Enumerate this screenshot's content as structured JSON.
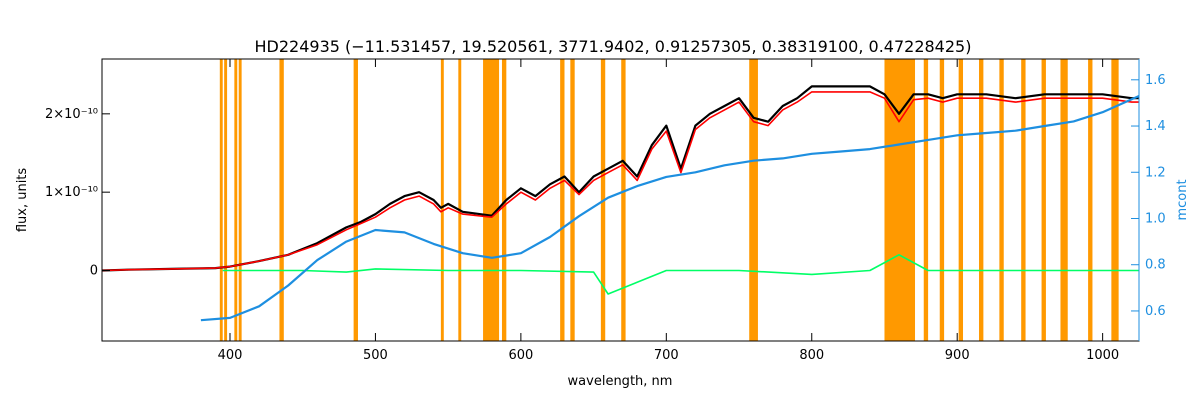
{
  "chart_data": {
    "type": "line",
    "title": "HD224935   (−11.531457, 19.520561, 3771.9402, 0.91257305, 0.38319100, 0.47228425)",
    "xlabel": "wavelength, nm",
    "ylabel": "flux, units",
    "y2label": "mcont",
    "xlim": [
      312,
      1025
    ],
    "ylim": [
      -9e-11,
      2.7e-10
    ],
    "y2lim": [
      0.47,
      1.69
    ],
    "x_ticks": [
      400,
      500,
      600,
      700,
      800,
      900,
      1000
    ],
    "x_tick_labels": [
      "400",
      "500",
      "600",
      "700",
      "800",
      "900",
      "1000"
    ],
    "y_ticks": [
      0,
      1e-10,
      2e-10
    ],
    "y_tick_labels": [
      "0",
      "1×10⁻¹⁰",
      "2×10⁻¹⁰"
    ],
    "y2_ticks": [
      0.6,
      0.8,
      1.0,
      1.2,
      1.4,
      1.6
    ],
    "y2_tick_labels": [
      "0.6",
      "0.8",
      "1.0",
      "1.2",
      "1.4",
      "1.6"
    ],
    "grid": false,
    "colors": {
      "observed": "#000000",
      "model": "#ff0000",
      "masked_model": "#ffff00",
      "residual": "#00ff66",
      "continuum": "#1e8fe0",
      "mask_band": "#ff9900"
    },
    "mask_bands": [
      [
        393,
        395
      ],
      [
        396,
        398
      ],
      [
        403,
        405
      ],
      [
        406,
        408
      ],
      [
        434,
        437
      ],
      [
        485,
        488
      ],
      [
        545,
        547
      ],
      [
        557,
        559
      ],
      [
        574,
        585
      ],
      [
        587,
        590
      ],
      [
        627,
        630
      ],
      [
        634,
        637
      ],
      [
        655,
        658
      ],
      [
        669,
        672
      ],
      [
        757,
        763
      ],
      [
        850,
        871
      ],
      [
        877,
        880
      ],
      [
        888,
        891
      ],
      [
        901,
        904
      ],
      [
        915,
        918
      ],
      [
        929,
        932
      ],
      [
        944,
        947
      ],
      [
        958,
        961
      ],
      [
        971,
        976
      ],
      [
        990,
        993
      ],
      [
        1006,
        1011
      ]
    ],
    "series": [
      {
        "key": "observed",
        "x": [
          312,
          330,
          360,
          390,
          400,
          420,
          440,
          460,
          480,
          490,
          500,
          510,
          520,
          530,
          540,
          545,
          550,
          560,
          580,
          590,
          600,
          610,
          620,
          630,
          640,
          650,
          660,
          670,
          680,
          690,
          700,
          710,
          720,
          730,
          740,
          750,
          760,
          770,
          780,
          790,
          800,
          820,
          840,
          850,
          860,
          870,
          880,
          890,
          900,
          920,
          940,
          960,
          980,
          1000,
          1020,
          1025
        ],
        "y": [
          0,
          1e-12,
          2e-12,
          3e-12,
          5e-12,
          1.2e-11,
          2e-11,
          3.5e-11,
          5.5e-11,
          6.2e-11,
          7.2e-11,
          8.5e-11,
          9.5e-11,
          1e-10,
          9e-11,
          8e-11,
          8.5e-11,
          7.5e-11,
          7e-11,
          9e-11,
          1.05e-10,
          9.5e-11,
          1.1e-10,
          1.2e-10,
          1e-10,
          1.2e-10,
          1.3e-10,
          1.4e-10,
          1.2e-10,
          1.6e-10,
          1.85e-10,
          1.3e-10,
          1.85e-10,
          2e-10,
          2.1e-10,
          2.2e-10,
          1.95e-10,
          1.9e-10,
          2.1e-10,
          2.2e-10,
          2.35e-10,
          2.35e-10,
          2.35e-10,
          2.25e-10,
          2e-10,
          2.25e-10,
          2.25e-10,
          2.2e-10,
          2.25e-10,
          2.25e-10,
          2.2e-10,
          2.25e-10,
          2.25e-10,
          2.25e-10,
          2.2e-10,
          2.2e-10
        ]
      },
      {
        "key": "model",
        "x": [
          312,
          330,
          360,
          390,
          400,
          420,
          440,
          460,
          480,
          490,
          500,
          510,
          520,
          530,
          540,
          545,
          550,
          560,
          580,
          590,
          600,
          610,
          620,
          630,
          640,
          650,
          660,
          670,
          680,
          690,
          700,
          710,
          720,
          730,
          740,
          750,
          760,
          770,
          780,
          790,
          800,
          820,
          840,
          850,
          860,
          870,
          880,
          890,
          900,
          920,
          940,
          960,
          980,
          1000,
          1020,
          1025
        ],
        "y": [
          0,
          1e-12,
          2e-12,
          3e-12,
          5e-12,
          1.2e-11,
          2e-11,
          3.3e-11,
          5.2e-11,
          6e-11,
          6.8e-11,
          8e-11,
          9e-11,
          9.5e-11,
          8.5e-11,
          7.5e-11,
          8e-11,
          7.2e-11,
          6.8e-11,
          8.5e-11,
          1e-10,
          9e-11,
          1.05e-10,
          1.15e-10,
          9.7e-11,
          1.15e-10,
          1.25e-10,
          1.35e-10,
          1.15e-10,
          1.55e-10,
          1.78e-10,
          1.25e-10,
          1.8e-10,
          1.95e-10,
          2.05e-10,
          2.15e-10,
          1.9e-10,
          1.85e-10,
          2.05e-10,
          2.15e-10,
          2.28e-10,
          2.28e-10,
          2.28e-10,
          2.2e-10,
          1.9e-10,
          2.18e-10,
          2.2e-10,
          2.15e-10,
          2.2e-10,
          2.2e-10,
          2.15e-10,
          2.2e-10,
          2.2e-10,
          2.2e-10,
          2.15e-10,
          2.15e-10
        ]
      },
      {
        "key": "residual",
        "x": [
          395,
          420,
          450,
          480,
          500,
          550,
          600,
          650,
          660,
          700,
          750,
          800,
          840,
          860,
          880,
          900,
          950,
          1000,
          1025
        ],
        "y": [
          0,
          0,
          0,
          -2e-12,
          2e-12,
          0,
          0,
          -2e-12,
          -3e-11,
          0,
          0,
          -5e-12,
          0,
          2e-11,
          0,
          0,
          0,
          0,
          0
        ]
      },
      {
        "key": "continuum",
        "axis": "right",
        "x": [
          380,
          400,
          420,
          440,
          460,
          480,
          500,
          520,
          540,
          560,
          580,
          600,
          620,
          640,
          660,
          680,
          700,
          720,
          740,
          760,
          780,
          800,
          820,
          840,
          860,
          880,
          900,
          920,
          940,
          960,
          980,
          1000,
          1025
        ],
        "y": [
          0.56,
          0.57,
          0.62,
          0.71,
          0.82,
          0.9,
          0.95,
          0.94,
          0.89,
          0.85,
          0.83,
          0.85,
          0.92,
          1.01,
          1.09,
          1.14,
          1.18,
          1.2,
          1.23,
          1.25,
          1.26,
          1.28,
          1.29,
          1.3,
          1.32,
          1.34,
          1.36,
          1.37,
          1.38,
          1.4,
          1.42,
          1.46,
          1.53
        ]
      }
    ]
  }
}
